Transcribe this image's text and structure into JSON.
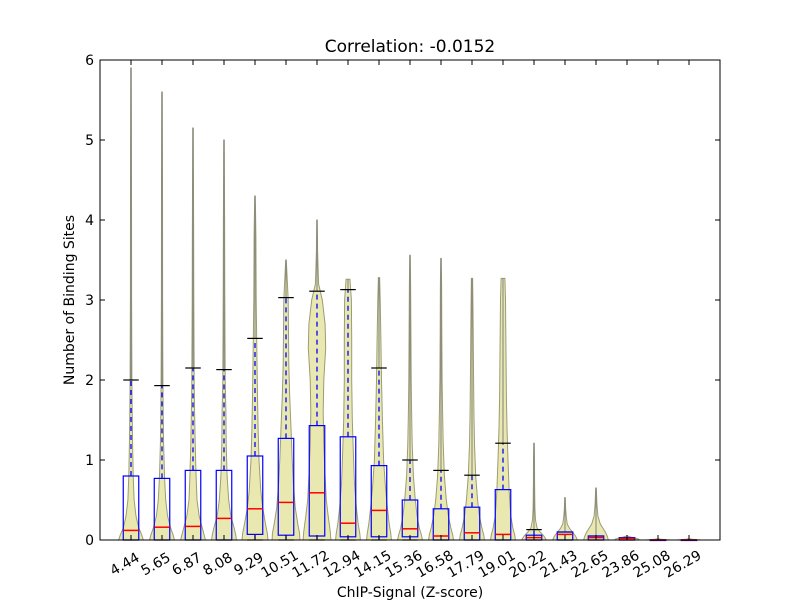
{
  "chart_data": {
    "type": "violin+box",
    "title": "Correlation: -0.0152",
    "xlabel": "ChIP-Signal (Z-score)",
    "ylabel": "Number of Binding Sites",
    "ylim": [
      0,
      6
    ],
    "yticks": [
      "0",
      "1",
      "2",
      "3",
      "4",
      "5",
      "6"
    ],
    "grid": false,
    "categories": [
      "4.44",
      "5.65",
      "6.87",
      "8.08",
      "9.29",
      "10.51",
      "11.72",
      "12.94",
      "14.15",
      "15.36",
      "16.58",
      "17.79",
      "19.01",
      "20.22",
      "21.43",
      "22.65",
      "23.86",
      "25.08",
      "26.29"
    ],
    "boxes": [
      {
        "q1": 0.0,
        "median": 0.12,
        "q3": 0.8,
        "whisker_low": 0.0,
        "whisker_high": 2.0,
        "max": 5.9
      },
      {
        "q1": 0.0,
        "median": 0.16,
        "q3": 0.77,
        "whisker_low": 0.0,
        "whisker_high": 1.93,
        "max": 5.6
      },
      {
        "q1": 0.0,
        "median": 0.17,
        "q3": 0.87,
        "whisker_low": 0.0,
        "whisker_high": 2.15,
        "max": 5.15
      },
      {
        "q1": 0.0,
        "median": 0.27,
        "q3": 0.87,
        "whisker_low": 0.0,
        "whisker_high": 2.13,
        "max": 5.0
      },
      {
        "q1": 0.07,
        "median": 0.39,
        "q3": 1.05,
        "whisker_low": 0.0,
        "whisker_high": 2.52,
        "max": 4.3
      },
      {
        "q1": 0.06,
        "median": 0.47,
        "q3": 1.27,
        "whisker_low": 0.0,
        "whisker_high": 3.03,
        "max": 3.5
      },
      {
        "q1": 0.05,
        "median": 0.59,
        "q3": 1.43,
        "whisker_low": 0.0,
        "whisker_high": 3.11,
        "max": 4.0
      },
      {
        "q1": 0.04,
        "median": 0.21,
        "q3": 1.29,
        "whisker_low": 0.0,
        "whisker_high": 3.13,
        "max": 3.26
      },
      {
        "q1": 0.04,
        "median": 0.37,
        "q3": 0.93,
        "whisker_low": 0.0,
        "whisker_high": 2.15,
        "max": 3.28
      },
      {
        "q1": 0.04,
        "median": 0.14,
        "q3": 0.5,
        "whisker_low": 0.0,
        "whisker_high": 1.0,
        "max": 3.56
      },
      {
        "q1": 0.0,
        "median": 0.05,
        "q3": 0.39,
        "whisker_low": 0.0,
        "whisker_high": 0.87,
        "max": 3.52
      },
      {
        "q1": 0.0,
        "median": 0.09,
        "q3": 0.41,
        "whisker_low": 0.0,
        "whisker_high": 0.81,
        "max": 3.27
      },
      {
        "q1": 0.0,
        "median": 0.07,
        "q3": 0.63,
        "whisker_low": 0.0,
        "whisker_high": 1.21,
        "max": 3.27
      },
      {
        "q1": 0.0,
        "median": 0.03,
        "q3": 0.06,
        "whisker_low": 0.0,
        "whisker_high": 0.13,
        "max": 1.21
      },
      {
        "q1": 0.0,
        "median": 0.07,
        "q3": 0.1,
        "whisker_low": 0.0,
        "whisker_high": 0.1,
        "max": 0.53
      },
      {
        "q1": 0.0,
        "median": 0.03,
        "q3": 0.05,
        "whisker_low": 0.0,
        "whisker_high": 0.05,
        "max": 0.65
      },
      {
        "q1": 0.0,
        "median": 0.02,
        "q3": 0.03,
        "whisker_low": 0.0,
        "whisker_high": 0.03,
        "max": 0.03
      },
      {
        "q1": 0.0,
        "median": 0.0,
        "q3": 0.0,
        "whisker_low": 0.0,
        "whisker_high": 0.0,
        "max": 0.0
      },
      {
        "q1": 0.0,
        "median": 0.0,
        "q3": 0.0,
        "whisker_low": 0.0,
        "whisker_high": 0.0,
        "max": 0.0
      }
    ],
    "violin_halfwidth": [
      [
        [
          0,
          0.4
        ],
        [
          0.06,
          0.35
        ],
        [
          0.15,
          0.25
        ],
        [
          0.3,
          0.16
        ],
        [
          0.5,
          0.1
        ],
        [
          0.8,
          0.07
        ],
        [
          1.2,
          0.05
        ],
        [
          1.6,
          0.04
        ],
        [
          2.0,
          0.03
        ],
        [
          3.0,
          0.02
        ],
        [
          4.5,
          0.015
        ],
        [
          5.9,
          0.01
        ]
      ],
      [
        [
          0,
          0.4
        ],
        [
          0.06,
          0.36
        ],
        [
          0.15,
          0.28
        ],
        [
          0.3,
          0.18
        ],
        [
          0.5,
          0.12
        ],
        [
          0.8,
          0.08
        ],
        [
          1.2,
          0.05
        ],
        [
          1.6,
          0.04
        ],
        [
          2.0,
          0.03
        ],
        [
          3.0,
          0.02
        ],
        [
          4.5,
          0.015
        ],
        [
          5.6,
          0.01
        ]
      ],
      [
        [
          0,
          0.4
        ],
        [
          0.06,
          0.36
        ],
        [
          0.15,
          0.3
        ],
        [
          0.3,
          0.2
        ],
        [
          0.5,
          0.13
        ],
        [
          0.8,
          0.1
        ],
        [
          1.2,
          0.07
        ],
        [
          1.6,
          0.05
        ],
        [
          2.0,
          0.04
        ],
        [
          3.0,
          0.025
        ],
        [
          4.0,
          0.02
        ],
        [
          5.15,
          0.01
        ]
      ],
      [
        [
          0,
          0.4
        ],
        [
          0.06,
          0.38
        ],
        [
          0.15,
          0.33
        ],
        [
          0.3,
          0.22
        ],
        [
          0.5,
          0.15
        ],
        [
          0.8,
          0.1
        ],
        [
          1.2,
          0.07
        ],
        [
          1.6,
          0.06
        ],
        [
          2.0,
          0.04
        ],
        [
          3.0,
          0.025
        ],
        [
          4.0,
          0.02
        ],
        [
          5.0,
          0.01
        ]
      ],
      [
        [
          0,
          0.42
        ],
        [
          0.08,
          0.4
        ],
        [
          0.2,
          0.34
        ],
        [
          0.4,
          0.25
        ],
        [
          0.6,
          0.19
        ],
        [
          1.0,
          0.13
        ],
        [
          1.4,
          0.1
        ],
        [
          1.8,
          0.08
        ],
        [
          2.3,
          0.06
        ],
        [
          3.0,
          0.04
        ],
        [
          3.8,
          0.03
        ],
        [
          4.3,
          0.01
        ]
      ],
      [
        [
          0,
          0.45
        ],
        [
          0.08,
          0.44
        ],
        [
          0.2,
          0.38
        ],
        [
          0.4,
          0.3
        ],
        [
          0.7,
          0.24
        ],
        [
          1.0,
          0.2
        ],
        [
          1.4,
          0.16
        ],
        [
          1.8,
          0.12
        ],
        [
          2.2,
          0.09
        ],
        [
          2.6,
          0.08
        ],
        [
          3.0,
          0.07
        ],
        [
          3.5,
          0.01
        ]
      ],
      [
        [
          0,
          0.45
        ],
        [
          0.1,
          0.43
        ],
        [
          0.3,
          0.36
        ],
        [
          0.5,
          0.3
        ],
        [
          0.8,
          0.26
        ],
        [
          1.2,
          0.22
        ],
        [
          1.6,
          0.2
        ],
        [
          2.0,
          0.22
        ],
        [
          2.4,
          0.28
        ],
        [
          2.7,
          0.26
        ],
        [
          3.0,
          0.17
        ],
        [
          3.2,
          0.05
        ],
        [
          3.6,
          0.02
        ],
        [
          4.0,
          0.01
        ]
      ],
      [
        [
          0,
          0.4
        ],
        [
          0.08,
          0.38
        ],
        [
          0.2,
          0.33
        ],
        [
          0.4,
          0.27
        ],
        [
          0.7,
          0.21
        ],
        [
          1.0,
          0.18
        ],
        [
          1.5,
          0.14
        ],
        [
          2.0,
          0.12
        ],
        [
          2.5,
          0.12
        ],
        [
          3.0,
          0.11
        ],
        [
          3.26,
          0.06
        ]
      ],
      [
        [
          0,
          0.4
        ],
        [
          0.08,
          0.38
        ],
        [
          0.2,
          0.33
        ],
        [
          0.4,
          0.27
        ],
        [
          0.7,
          0.2
        ],
        [
          1.0,
          0.15
        ],
        [
          1.5,
          0.11
        ],
        [
          2.0,
          0.08
        ],
        [
          2.5,
          0.06
        ],
        [
          3.0,
          0.04
        ],
        [
          3.28,
          0.02
        ]
      ],
      [
        [
          0,
          0.4
        ],
        [
          0.06,
          0.37
        ],
        [
          0.15,
          0.3
        ],
        [
          0.3,
          0.23
        ],
        [
          0.5,
          0.17
        ],
        [
          0.8,
          0.11
        ],
        [
          1.2,
          0.07
        ],
        [
          1.6,
          0.05
        ],
        [
          2.0,
          0.04
        ],
        [
          2.6,
          0.03
        ],
        [
          3.2,
          0.02
        ],
        [
          3.56,
          0.01
        ]
      ],
      [
        [
          0,
          0.4
        ],
        [
          0.06,
          0.38
        ],
        [
          0.15,
          0.32
        ],
        [
          0.3,
          0.24
        ],
        [
          0.5,
          0.17
        ],
        [
          0.8,
          0.11
        ],
        [
          1.2,
          0.07
        ],
        [
          1.6,
          0.05
        ],
        [
          2.0,
          0.035
        ],
        [
          2.6,
          0.025
        ],
        [
          3.2,
          0.02
        ],
        [
          3.52,
          0.01
        ]
      ],
      [
        [
          0,
          0.4
        ],
        [
          0.06,
          0.38
        ],
        [
          0.15,
          0.32
        ],
        [
          0.3,
          0.24
        ],
        [
          0.5,
          0.18
        ],
        [
          0.8,
          0.12
        ],
        [
          1.2,
          0.08
        ],
        [
          1.6,
          0.06
        ],
        [
          2.0,
          0.05
        ],
        [
          2.6,
          0.04
        ],
        [
          3.0,
          0.03
        ],
        [
          3.27,
          0.02
        ]
      ],
      [
        [
          0,
          0.4
        ],
        [
          0.06,
          0.38
        ],
        [
          0.15,
          0.32
        ],
        [
          0.3,
          0.25
        ],
        [
          0.6,
          0.2
        ],
        [
          1.0,
          0.16
        ],
        [
          1.4,
          0.13
        ],
        [
          1.8,
          0.11
        ],
        [
          2.2,
          0.1
        ],
        [
          2.6,
          0.09
        ],
        [
          3.0,
          0.08
        ],
        [
          3.27,
          0.06
        ]
      ],
      [
        [
          0,
          0.4
        ],
        [
          0.05,
          0.32
        ],
        [
          0.1,
          0.2
        ],
        [
          0.15,
          0.1
        ],
        [
          0.25,
          0.05
        ],
        [
          0.4,
          0.03
        ],
        [
          0.7,
          0.02
        ],
        [
          1.0,
          0.015
        ],
        [
          1.21,
          0.01
        ]
      ],
      [
        [
          0,
          0.4
        ],
        [
          0.05,
          0.34
        ],
        [
          0.1,
          0.24
        ],
        [
          0.15,
          0.14
        ],
        [
          0.2,
          0.07
        ],
        [
          0.3,
          0.04
        ],
        [
          0.4,
          0.02
        ],
        [
          0.53,
          0.01
        ]
      ],
      [
        [
          0,
          0.4
        ],
        [
          0.05,
          0.36
        ],
        [
          0.1,
          0.3
        ],
        [
          0.15,
          0.22
        ],
        [
          0.2,
          0.14
        ],
        [
          0.3,
          0.06
        ],
        [
          0.45,
          0.03
        ],
        [
          0.65,
          0.01
        ]
      ],
      [
        [
          0,
          0.4
        ],
        [
          0.01,
          0.38
        ],
        [
          0.02,
          0.3
        ],
        [
          0.03,
          0.2
        ],
        [
          0.04,
          0.1
        ],
        [
          0.05,
          0.02
        ]
      ],
      [
        [
          0,
          0.4
        ],
        [
          0.005,
          0.25
        ],
        [
          0.01,
          0.1
        ],
        [
          0.015,
          0.01
        ]
      ],
      [
        [
          0,
          0.4
        ],
        [
          0.005,
          0.25
        ],
        [
          0.01,
          0.1
        ],
        [
          0.015,
          0.01
        ]
      ]
    ],
    "colors": {
      "violin_fill": "#e8e8b0",
      "violin_edge": "#9c9c74",
      "box": "#0000ff",
      "median": "#ff0000",
      "whisker": "#0000ff",
      "cap": "#000000",
      "range_line": "#808080"
    }
  }
}
